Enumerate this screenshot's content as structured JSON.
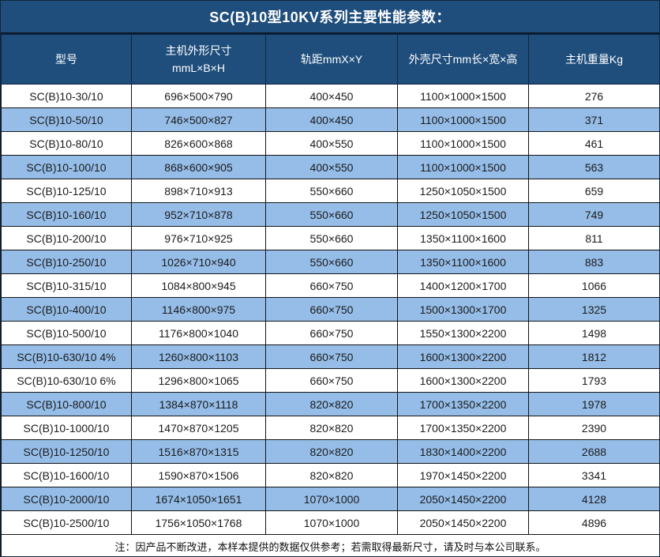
{
  "title": "SC(B)10型10KV系列主要性能参数：",
  "table": {
    "columns": [
      {
        "lines": [
          "型号"
        ]
      },
      {
        "lines": [
          "主机外形尺寸",
          "mmL×B×H"
        ]
      },
      {
        "lines": [
          "轨距mmX×Y"
        ]
      },
      {
        "lines": [
          "外壳尺寸mm长×宽×高"
        ]
      },
      {
        "lines": [
          "主机重量Kg"
        ]
      }
    ],
    "rows": [
      [
        "SC(B)10-30/10",
        "696×500×790",
        "400×450",
        "1100×1000×1500",
        "276"
      ],
      [
        "SC(B)10-50/10",
        "746×500×827",
        "400×450",
        "1100×1000×1500",
        "371"
      ],
      [
        "SC(B)10-80/10",
        "826×600×868",
        "400×550",
        "1100×1000×1500",
        "461"
      ],
      [
        "SC(B)10-100/10",
        "868×600×905",
        "400×550",
        "1100×1000×1500",
        "563"
      ],
      [
        "SC(B)10-125/10",
        "898×710×913",
        "550×660",
        "1250×1050×1500",
        "659"
      ],
      [
        "SC(B)10-160/10",
        "952×710×878",
        "550×660",
        "1250×1050×1500",
        "749"
      ],
      [
        "SC(B)10-200/10",
        "976×710×925",
        "550×660",
        "1350×1100×1600",
        "811"
      ],
      [
        "SC(B)10-250/10",
        "1026×710×940",
        "550×660",
        "1350×1100×1600",
        "883"
      ],
      [
        "SC(B)10-315/10",
        "1084×800×945",
        "660×750",
        "1400×1200×1700",
        "1066"
      ],
      [
        "SC(B)10-400/10",
        "1146×800×975",
        "660×750",
        "1500×1300×1700",
        "1325"
      ],
      [
        "SC(B)10-500/10",
        "1176×800×1040",
        "660×750",
        "1550×1300×2200",
        "1498"
      ],
      [
        "SC(B)10-630/10 4%",
        "1260×800×1103",
        "660×750",
        "1600×1300×2200",
        "1812"
      ],
      [
        "SC(B)10-630/10 6%",
        "1296×800×1065",
        "660×750",
        "1600×1300×2200",
        "1793"
      ],
      [
        "SC(B)10-800/10",
        "1384×870×1118",
        "820×820",
        "1700×1350×2200",
        "1978"
      ],
      [
        "SC(B)10-1000/10",
        "1470×870×1205",
        "820×820",
        "1700×1350×2200",
        "2390"
      ],
      [
        "SC(B)10-1250/10",
        "1516×870×1315",
        "820×820",
        "1830×1400×2200",
        "2688"
      ],
      [
        "SC(B)10-1600/10",
        "1590×870×1506",
        "820×820",
        "1970×1450×2200",
        "3341"
      ],
      [
        "SC(B)10-2000/10",
        "1674×1050×1651",
        "1070×1000",
        "2050×1450×2200",
        "4128"
      ],
      [
        "SC(B)10-2500/10",
        "1756×1050×1768",
        "1070×1000",
        "2050×1450×2200",
        "4896"
      ]
    ]
  },
  "note": "注：因产品不断改进，本样本提供的数据仅供参考；若需取得最新尺寸，请及时与本公司联系。",
  "colors": {
    "header_bg": "#1f4e7c",
    "row_alt_bg": "#95bde8",
    "row_bg": "#ffffff",
    "header_text": "#ffffff",
    "body_text": "#1b1b1b",
    "grid_border": "#141414"
  }
}
